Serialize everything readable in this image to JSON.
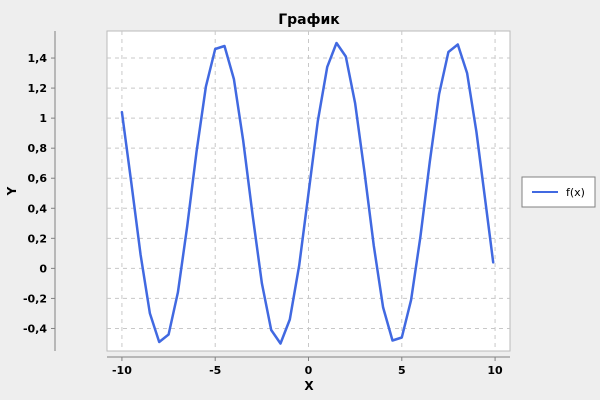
{
  "chart_data": {
    "type": "line",
    "title": "График",
    "xlabel": "X",
    "ylabel": "Y",
    "xlim": [
      -10.8,
      10.8
    ],
    "ylim": [
      -0.55,
      1.58
    ],
    "x_ticks": [
      -10,
      -5,
      0,
      5,
      10
    ],
    "x_tick_labels": [
      "-10",
      "-5",
      "0",
      "5",
      "10"
    ],
    "y_ticks": [
      -0.4,
      -0.2,
      0,
      0.2,
      0.4,
      0.6,
      0.8,
      1,
      1.2,
      1.4
    ],
    "y_tick_labels": [
      "-0,4",
      "-0,2",
      "0",
      "0,2",
      "0,4",
      "0,6",
      "0,8",
      "1",
      "1,2",
      "1,4"
    ],
    "grid": true,
    "legend_position": "right",
    "series": [
      {
        "name": "f(x)",
        "color": "#4169e1",
        "x": [
          -10,
          -9.5,
          -9,
          -8.5,
          -8,
          -7.5,
          -7,
          -6.5,
          -6,
          -5.5,
          -5,
          -4.5,
          -4,
          -3.5,
          -3,
          -2.5,
          -2,
          -1.5,
          -1,
          -0.5,
          0,
          0.5,
          1,
          1.5,
          2,
          2.5,
          3,
          3.5,
          4,
          4.5,
          5,
          5.5,
          6,
          6.5,
          7,
          7.5,
          8,
          8.5,
          9,
          9.5,
          9.9
        ],
        "y": [
          1.04,
          0.57,
          0.09,
          -0.3,
          -0.49,
          -0.44,
          -0.16,
          0.28,
          0.78,
          1.21,
          1.46,
          1.48,
          1.26,
          0.85,
          0.36,
          -0.1,
          -0.41,
          -0.5,
          -0.34,
          0.02,
          0.5,
          0.98,
          1.34,
          1.5,
          1.41,
          1.1,
          0.64,
          0.15,
          -0.26,
          -0.48,
          -0.46,
          -0.21,
          0.21,
          0.71,
          1.16,
          1.44,
          1.49,
          1.3,
          0.91,
          0.43,
          0.04
        ]
      }
    ]
  },
  "colors": {
    "background": "#eeeeee",
    "plot_background": "#ffffff",
    "grid": "#c8c8c8",
    "axis": "#808080",
    "line": "#4169e1"
  }
}
